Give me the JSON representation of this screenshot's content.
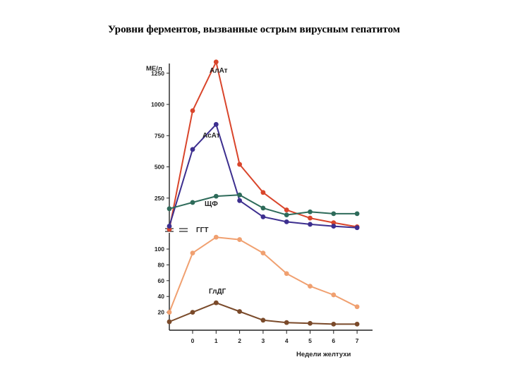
{
  "title": "Уровни ферментов, вызванные острым вирусным гепатитом",
  "chart_data": {
    "type": "line",
    "title": "Уровни ферментов, вызванные острым вирусным гепатитом",
    "ylabel": "МЕ/л",
    "xlabel": "Недели желтухи",
    "x_ticks": [
      "0",
      "1",
      "2",
      "3",
      "4",
      "5",
      "6",
      "7"
    ],
    "y_ticks_upper": [
      "1250",
      "1000",
      "750",
      "500",
      "250"
    ],
    "y_ticks_lower": [
      "100",
      "80",
      "60",
      "40",
      "20"
    ],
    "scale_note": "split y axis: upper segment 0–1400 МЕ/л, lower segment 0–110 МЕ/л",
    "series": [
      {
        "name": "АлАт",
        "color": "#d9452b",
        "scale": "upper",
        "points": [
          [
            -1,
            0
          ],
          [
            0,
            950
          ],
          [
            1,
            1340
          ],
          [
            2,
            520
          ],
          [
            3,
            295
          ],
          [
            4,
            155
          ],
          [
            5,
            90
          ],
          [
            6,
            53
          ],
          [
            7,
            20
          ]
        ]
      },
      {
        "name": "АсАт",
        "color": "#3d2f8f",
        "scale": "upper",
        "points": [
          [
            -1,
            25
          ],
          [
            0,
            640
          ],
          [
            1,
            840
          ],
          [
            2,
            230
          ],
          [
            3,
            100
          ],
          [
            4,
            60
          ],
          [
            5,
            40
          ],
          [
            6,
            25
          ],
          [
            7,
            13
          ]
        ]
      },
      {
        "name": "ЩФ",
        "color": "#2e6b5a",
        "scale": "upper",
        "points": [
          [
            -1,
            165
          ],
          [
            0,
            215
          ],
          [
            1,
            265
          ],
          [
            2,
            275
          ],
          [
            3,
            170
          ],
          [
            4,
            115
          ],
          [
            5,
            140
          ],
          [
            6,
            125
          ],
          [
            7,
            125
          ]
        ]
      },
      {
        "name": "ГГТ",
        "color": "#f0a070",
        "scale": "lower",
        "points": [
          [
            -1,
            20
          ],
          [
            0,
            95
          ],
          [
            1,
            115
          ],
          [
            2,
            112
          ],
          [
            3,
            95
          ],
          [
            4,
            69
          ],
          [
            5,
            53
          ],
          [
            6,
            42
          ],
          [
            7,
            27
          ]
        ]
      },
      {
        "name": "ГлДГ",
        "color": "#7a4a2a",
        "scale": "lower",
        "points": [
          [
            -1,
            8
          ],
          [
            0,
            20
          ],
          [
            1,
            32
          ],
          [
            2,
            21
          ],
          [
            3,
            10
          ],
          [
            4,
            7
          ],
          [
            5,
            6
          ],
          [
            6,
            5
          ],
          [
            7,
            5
          ]
        ]
      }
    ]
  }
}
